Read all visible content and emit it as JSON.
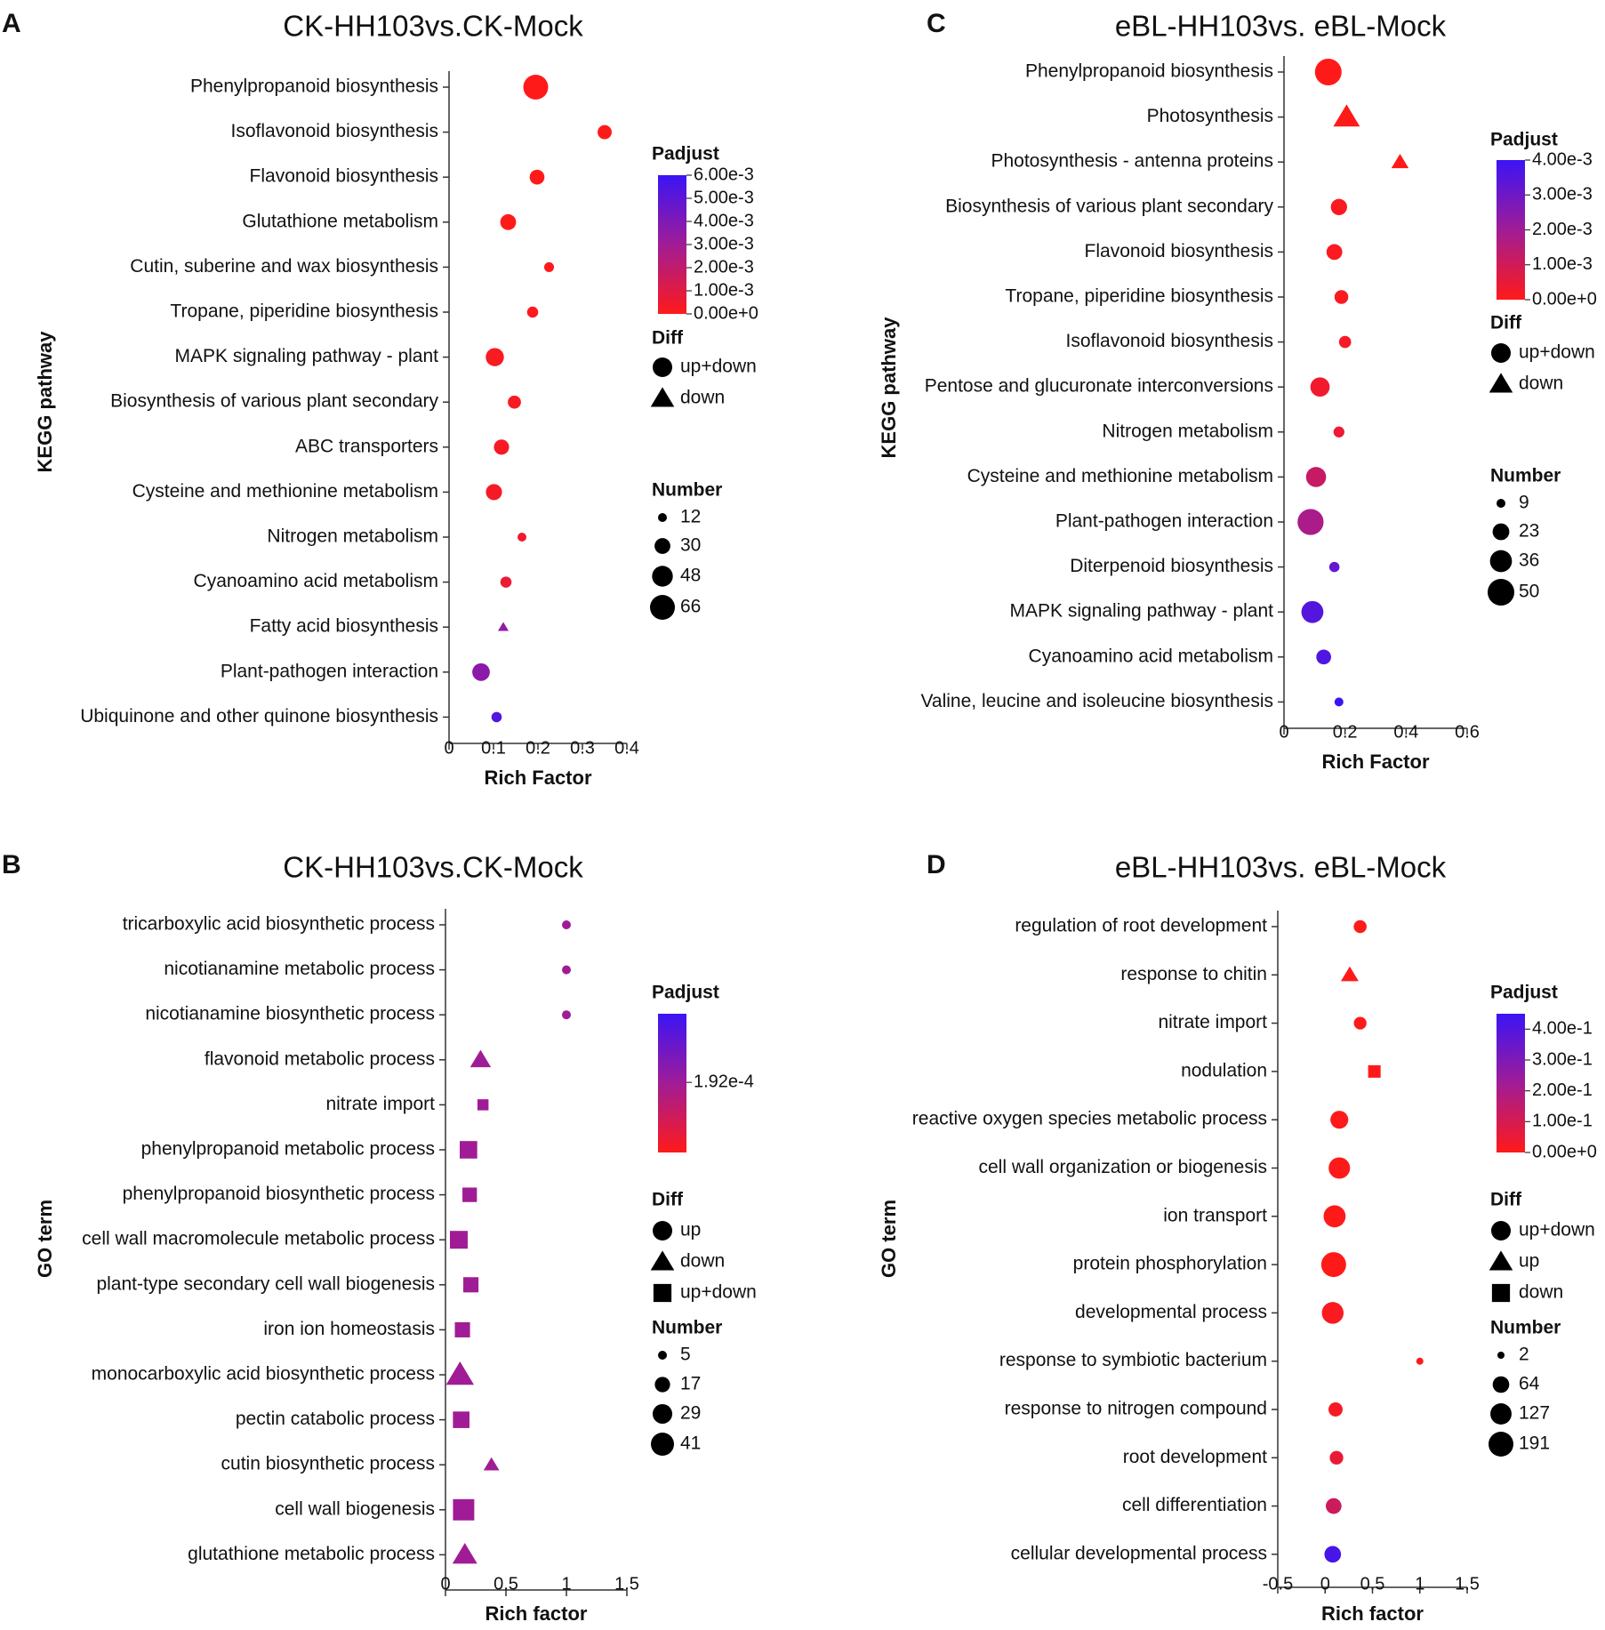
{
  "chart_data": [
    {
      "panel": "A",
      "type": "scatter",
      "title": "CK-HH103vs.CK-Mock",
      "ylabel": "KEGG pathway",
      "xlabel": "Rich Factor",
      "xlim": [
        0,
        0.4
      ],
      "xticks": [
        0,
        0.1,
        0.2,
        0.3,
        0.4
      ],
      "xtick_labels": [
        "0",
        "0.1",
        "0.2",
        "0.3",
        "0.4"
      ],
      "size_range": [
        12,
        66
      ],
      "points": [
        {
          "term": "Phenylpropanoid biosynthesis",
          "rich": 0.195,
          "number": 66,
          "padjust": 0.0,
          "diff": "up+down"
        },
        {
          "term": "Isoflavonoid biosynthesis",
          "rich": 0.35,
          "number": 25,
          "padjust": 0.0,
          "diff": "up+down"
        },
        {
          "term": "Flavonoid biosynthesis",
          "rich": 0.198,
          "number": 27,
          "padjust": 0.0,
          "diff": "up+down"
        },
        {
          "term": "Glutathione metabolism",
          "rich": 0.133,
          "number": 30,
          "padjust": 0.0,
          "diff": "up+down"
        },
        {
          "term": "Cutin, suberine and wax biosynthesis",
          "rich": 0.225,
          "number": 14,
          "padjust": 0.0001,
          "diff": "up+down"
        },
        {
          "term": "Tropane, piperidine biosynthesis",
          "rich": 0.188,
          "number": 17,
          "padjust": 0.0001,
          "diff": "up+down"
        },
        {
          "term": "MAPK signaling pathway - plant",
          "rich": 0.103,
          "number": 38,
          "padjust": 0.0002,
          "diff": "up+down"
        },
        {
          "term": "Biosynthesis of various plant secondary",
          "rich": 0.147,
          "number": 22,
          "padjust": 0.0002,
          "diff": "up+down"
        },
        {
          "term": "ABC transporters",
          "rich": 0.118,
          "number": 28,
          "padjust": 0.0003,
          "diff": "up+down"
        },
        {
          "term": "Cysteine and methionine metabolism",
          "rich": 0.101,
          "number": 31,
          "padjust": 0.0003,
          "diff": "up+down"
        },
        {
          "term": "Nitrogen metabolism",
          "rich": 0.164,
          "number": 12,
          "padjust": 0.0005,
          "diff": "up+down"
        },
        {
          "term": "Cyanoamino acid metabolism",
          "rich": 0.128,
          "number": 17,
          "padjust": 0.0006,
          "diff": "up+down"
        },
        {
          "term": "Fatty acid biosynthesis",
          "rich": 0.122,
          "number": 12,
          "padjust": 0.0035,
          "diff": "down"
        },
        {
          "term": "Plant-pathogen interaction",
          "rich": 0.072,
          "number": 36,
          "padjust": 0.0036,
          "diff": "up+down"
        },
        {
          "term": "Ubiquinone and other quinone biosynthesis",
          "rich": 0.107,
          "number": 15,
          "padjust": 0.0053,
          "diff": "up+down"
        }
      ],
      "legend": {
        "padjust_title": "Padjust",
        "padjust_range": [
          0,
          0.006
        ],
        "padjust_ticks": [
          {
            "value": 0.006,
            "label": "6.00e-3"
          },
          {
            "value": 0.005,
            "label": "5.00e-3"
          },
          {
            "value": 0.004,
            "label": "4.00e-3"
          },
          {
            "value": 0.003,
            "label": "3.00e-3"
          },
          {
            "value": 0.002,
            "label": "2.00e-3"
          },
          {
            "value": 0.001,
            "label": "1.00e-3"
          },
          {
            "value": 0.0,
            "label": "0.00e+0"
          }
        ],
        "diff_title": "Diff",
        "diff_items": [
          {
            "shape": "circle",
            "label": "up+down"
          },
          {
            "shape": "triangle",
            "label": "down"
          }
        ],
        "number_title": "Number",
        "number_items": [
          {
            "value": 12,
            "label": "12"
          },
          {
            "value": 30,
            "label": "30"
          },
          {
            "value": 48,
            "label": "48"
          },
          {
            "value": 66,
            "label": "66"
          }
        ]
      }
    },
    {
      "panel": "C",
      "type": "scatter",
      "title": "eBL-HH103vs. eBL-Mock",
      "ylabel": "KEGG pathway",
      "xlabel": "Rich Factor",
      "xlim": [
        0,
        0.6
      ],
      "xticks": [
        0,
        0.2,
        0.4,
        0.6
      ],
      "xtick_labels": [
        "0",
        "0.2",
        "0.4",
        "0.6"
      ],
      "size_range": [
        9,
        50
      ],
      "points": [
        {
          "term": "Phenylpropanoid biosynthesis",
          "rich": 0.145,
          "number": 50,
          "padjust": 0.0,
          "diff": "up+down"
        },
        {
          "term": "Photosynthesis",
          "rich": 0.205,
          "number": 36,
          "padjust": 0.0,
          "diff": "down"
        },
        {
          "term": "Photosynthesis - antenna proteins",
          "rich": 0.38,
          "number": 18,
          "padjust": 0.0,
          "diff": "down"
        },
        {
          "term": "Biosynthesis of various plant secondary",
          "rich": 0.18,
          "number": 22,
          "padjust": 0.0001,
          "diff": "up+down"
        },
        {
          "term": "Flavonoid biosynthesis",
          "rich": 0.165,
          "number": 21,
          "padjust": 0.0001,
          "diff": "up+down"
        },
        {
          "term": "Tropane, piperidine biosynthesis",
          "rich": 0.188,
          "number": 17,
          "padjust": 0.0001,
          "diff": "up+down"
        },
        {
          "term": "Isoflavonoid biosynthesis",
          "rich": 0.2,
          "number": 14,
          "padjust": 0.0002,
          "diff": "up+down"
        },
        {
          "term": "Pentose and glucuronate interconversions",
          "rich": 0.118,
          "number": 29,
          "padjust": 0.0003,
          "diff": "up+down"
        },
        {
          "term": "Nitrogen metabolism",
          "rich": 0.18,
          "number": 12,
          "padjust": 0.0004,
          "diff": "up+down"
        },
        {
          "term": "Cysteine and methionine metabolism",
          "rich": 0.105,
          "number": 31,
          "padjust": 0.0012,
          "diff": "up+down"
        },
        {
          "term": "Plant-pathogen interaction",
          "rich": 0.087,
          "number": 48,
          "padjust": 0.0018,
          "diff": "up+down"
        },
        {
          "term": "Diterpenoid biosynthesis",
          "rich": 0.165,
          "number": 11,
          "padjust": 0.0032,
          "diff": "up+down"
        },
        {
          "term": "MAPK signaling pathway - plant",
          "rich": 0.093,
          "number": 36,
          "padjust": 0.0035,
          "diff": "up+down"
        },
        {
          "term": "Cyanoamino acid metabolism",
          "rich": 0.13,
          "number": 19,
          "padjust": 0.0036,
          "diff": "up+down"
        },
        {
          "term": "Valine, leucine and isoleucine biosynthesis",
          "rich": 0.18,
          "number": 9,
          "padjust": 0.004,
          "diff": "up+down"
        }
      ],
      "legend": {
        "padjust_title": "Padjust",
        "padjust_range": [
          0,
          0.004
        ],
        "padjust_ticks": [
          {
            "value": 0.004,
            "label": "4.00e-3"
          },
          {
            "value": 0.003,
            "label": "3.00e-3"
          },
          {
            "value": 0.002,
            "label": "2.00e-3"
          },
          {
            "value": 0.001,
            "label": "1.00e-3"
          },
          {
            "value": 0.0,
            "label": "0.00e+0"
          }
        ],
        "diff_title": "Diff",
        "diff_items": [
          {
            "shape": "circle",
            "label": "up+down"
          },
          {
            "shape": "triangle",
            "label": "down"
          }
        ],
        "number_title": "Number",
        "number_items": [
          {
            "value": 9,
            "label": "9"
          },
          {
            "value": 23,
            "label": "23"
          },
          {
            "value": 36,
            "label": "36"
          },
          {
            "value": 50,
            "label": "50"
          }
        ]
      }
    },
    {
      "panel": "B",
      "type": "scatter",
      "title": "CK-HH103vs.CK-Mock",
      "ylabel": "GO term",
      "xlabel": "Rich factor",
      "xlim": [
        0,
        1.5
      ],
      "xticks": [
        0,
        0.5,
        1,
        1.5
      ],
      "xtick_labels": [
        "0",
        "0.5",
        "1",
        "1.5"
      ],
      "size_range": [
        5,
        41
      ],
      "points": [
        {
          "term": "tricarboxylic acid biosynthetic process",
          "rich": 1.0,
          "number": 5,
          "padjust": 0.00019,
          "diff": "up"
        },
        {
          "term": "nicotianamine metabolic process",
          "rich": 1.0,
          "number": 5,
          "padjust": 0.00019,
          "diff": "up"
        },
        {
          "term": "nicotianamine biosynthetic process",
          "rich": 1.0,
          "number": 5,
          "padjust": 0.00019,
          "diff": "up"
        },
        {
          "term": "flavonoid metabolic process",
          "rich": 0.29,
          "number": 22,
          "padjust": 0.00019,
          "diff": "down"
        },
        {
          "term": "nitrate import",
          "rich": 0.31,
          "number": 10,
          "padjust": 0.00019,
          "diff": "up+down"
        },
        {
          "term": "phenylpropanoid metabolic process",
          "rich": 0.19,
          "number": 27,
          "padjust": 0.00019,
          "diff": "up+down"
        },
        {
          "term": "phenylpropanoid biosynthetic process",
          "rich": 0.2,
          "number": 18,
          "padjust": 0.00019,
          "diff": "up+down"
        },
        {
          "term": "cell wall macromolecule metabolic process",
          "rich": 0.11,
          "number": 28,
          "padjust": 0.00019,
          "diff": "up+down"
        },
        {
          "term": "plant-type secondary cell wall biogenesis",
          "rich": 0.21,
          "number": 20,
          "padjust": 0.00019,
          "diff": "up+down"
        },
        {
          "term": "iron ion homeostasis",
          "rich": 0.14,
          "number": 20,
          "padjust": 0.00019,
          "diff": "up+down"
        },
        {
          "term": "monocarboxylic acid biosynthetic process",
          "rich": 0.12,
          "number": 41,
          "padjust": 0.00019,
          "diff": "down"
        },
        {
          "term": "pectin catabolic process",
          "rich": 0.13,
          "number": 24,
          "padjust": 0.00019,
          "diff": "up+down"
        },
        {
          "term": "cutin biosynthetic process",
          "rich": 0.38,
          "number": 12,
          "padjust": 0.00019,
          "diff": "down"
        },
        {
          "term": "cell wall biogenesis",
          "rich": 0.15,
          "number": 41,
          "padjust": 0.00019,
          "diff": "up+down"
        },
        {
          "term": "glutathione metabolic process",
          "rich": 0.16,
          "number": 32,
          "padjust": 0.00019,
          "diff": "down"
        }
      ],
      "legend": {
        "padjust_title": "Padjust",
        "padjust_range": [
          0,
          0.00038
        ],
        "padjust_ticks": [
          {
            "value": 0.000192,
            "label": "1.92e-4"
          }
        ],
        "diff_title": "Diff",
        "diff_items": [
          {
            "shape": "circle",
            "label": "up"
          },
          {
            "shape": "triangle",
            "label": "down"
          },
          {
            "shape": "square",
            "label": "up+down"
          }
        ],
        "number_title": "Number",
        "number_items": [
          {
            "value": 5,
            "label": "5"
          },
          {
            "value": 17,
            "label": "17"
          },
          {
            "value": 29,
            "label": "29"
          },
          {
            "value": 41,
            "label": "41"
          }
        ]
      }
    },
    {
      "panel": "D",
      "type": "scatter",
      "title": "eBL-HH103vs. eBL-Mock",
      "ylabel": "GO term",
      "xlabel": "Rich factor",
      "xlim": [
        -0.5,
        1.5
      ],
      "xticks": [
        -0.5,
        0,
        0.5,
        1,
        1.5
      ],
      "xtick_labels": [
        "-0.5",
        "0",
        "0.5",
        "1",
        "1.5"
      ],
      "size_range": [
        2,
        191
      ],
      "points": [
        {
          "term": "regulation of root development",
          "rich": 0.37,
          "number": 30,
          "padjust": 0.0,
          "diff": "up+down"
        },
        {
          "term": "response to chitin",
          "rich": 0.26,
          "number": 45,
          "padjust": 0.0,
          "diff": "up"
        },
        {
          "term": "nitrate import",
          "rich": 0.37,
          "number": 28,
          "padjust": 0.0,
          "diff": "up+down"
        },
        {
          "term": "nodulation",
          "rich": 0.52,
          "number": 35,
          "padjust": 0.0,
          "diff": "down"
        },
        {
          "term": "reactive oxygen species metabolic process",
          "rich": 0.15,
          "number": 80,
          "padjust": 0.0,
          "diff": "up+down"
        },
        {
          "term": "cell wall organization or biogenesis",
          "rich": 0.15,
          "number": 130,
          "padjust": 0.0,
          "diff": "up+down"
        },
        {
          "term": "ion transport",
          "rich": 0.1,
          "number": 140,
          "padjust": 0.0,
          "diff": "up+down"
        },
        {
          "term": "protein phosphorylation",
          "rich": 0.09,
          "number": 191,
          "padjust": 0.0,
          "diff": "up+down"
        },
        {
          "term": "developmental process",
          "rich": 0.08,
          "number": 135,
          "padjust": 0.01,
          "diff": "up+down"
        },
        {
          "term": "response to symbiotic bacterium",
          "rich": 1.0,
          "number": 2,
          "padjust": 0.0,
          "diff": "up+down"
        },
        {
          "term": "response to nitrogen compound",
          "rich": 0.11,
          "number": 40,
          "padjust": 0.02,
          "diff": "up+down"
        },
        {
          "term": "root development",
          "rich": 0.12,
          "number": 35,
          "padjust": 0.05,
          "diff": "up+down"
        },
        {
          "term": "cell differentiation",
          "rich": 0.09,
          "number": 55,
          "padjust": 0.12,
          "diff": "up+down"
        },
        {
          "term": "cellular developmental process",
          "rich": 0.08,
          "number": 65,
          "padjust": 0.42,
          "diff": "up+down"
        }
      ],
      "legend": {
        "padjust_title": "Padjust",
        "padjust_range": [
          0,
          0.45
        ],
        "padjust_ticks": [
          {
            "value": 0.4,
            "label": "4.00e-1"
          },
          {
            "value": 0.3,
            "label": "3.00e-1"
          },
          {
            "value": 0.2,
            "label": "2.00e-1"
          },
          {
            "value": 0.1,
            "label": "1.00e-1"
          },
          {
            "value": 0.0,
            "label": "0.00e+0"
          }
        ],
        "diff_title": "Diff",
        "diff_items": [
          {
            "shape": "circle",
            "label": "up+down"
          },
          {
            "shape": "triangle",
            "label": "up"
          },
          {
            "shape": "square",
            "label": "down"
          }
        ],
        "number_title": "Number",
        "number_items": [
          {
            "value": 2,
            "label": "2"
          },
          {
            "value": 64,
            "label": "64"
          },
          {
            "value": 127,
            "label": "127"
          },
          {
            "value": 191,
            "label": "191"
          }
        ]
      }
    }
  ],
  "colors": {
    "low": "#ff1a1a",
    "mid": "#a01c96",
    "high": "#3b14f5",
    "axis": "#333333"
  }
}
